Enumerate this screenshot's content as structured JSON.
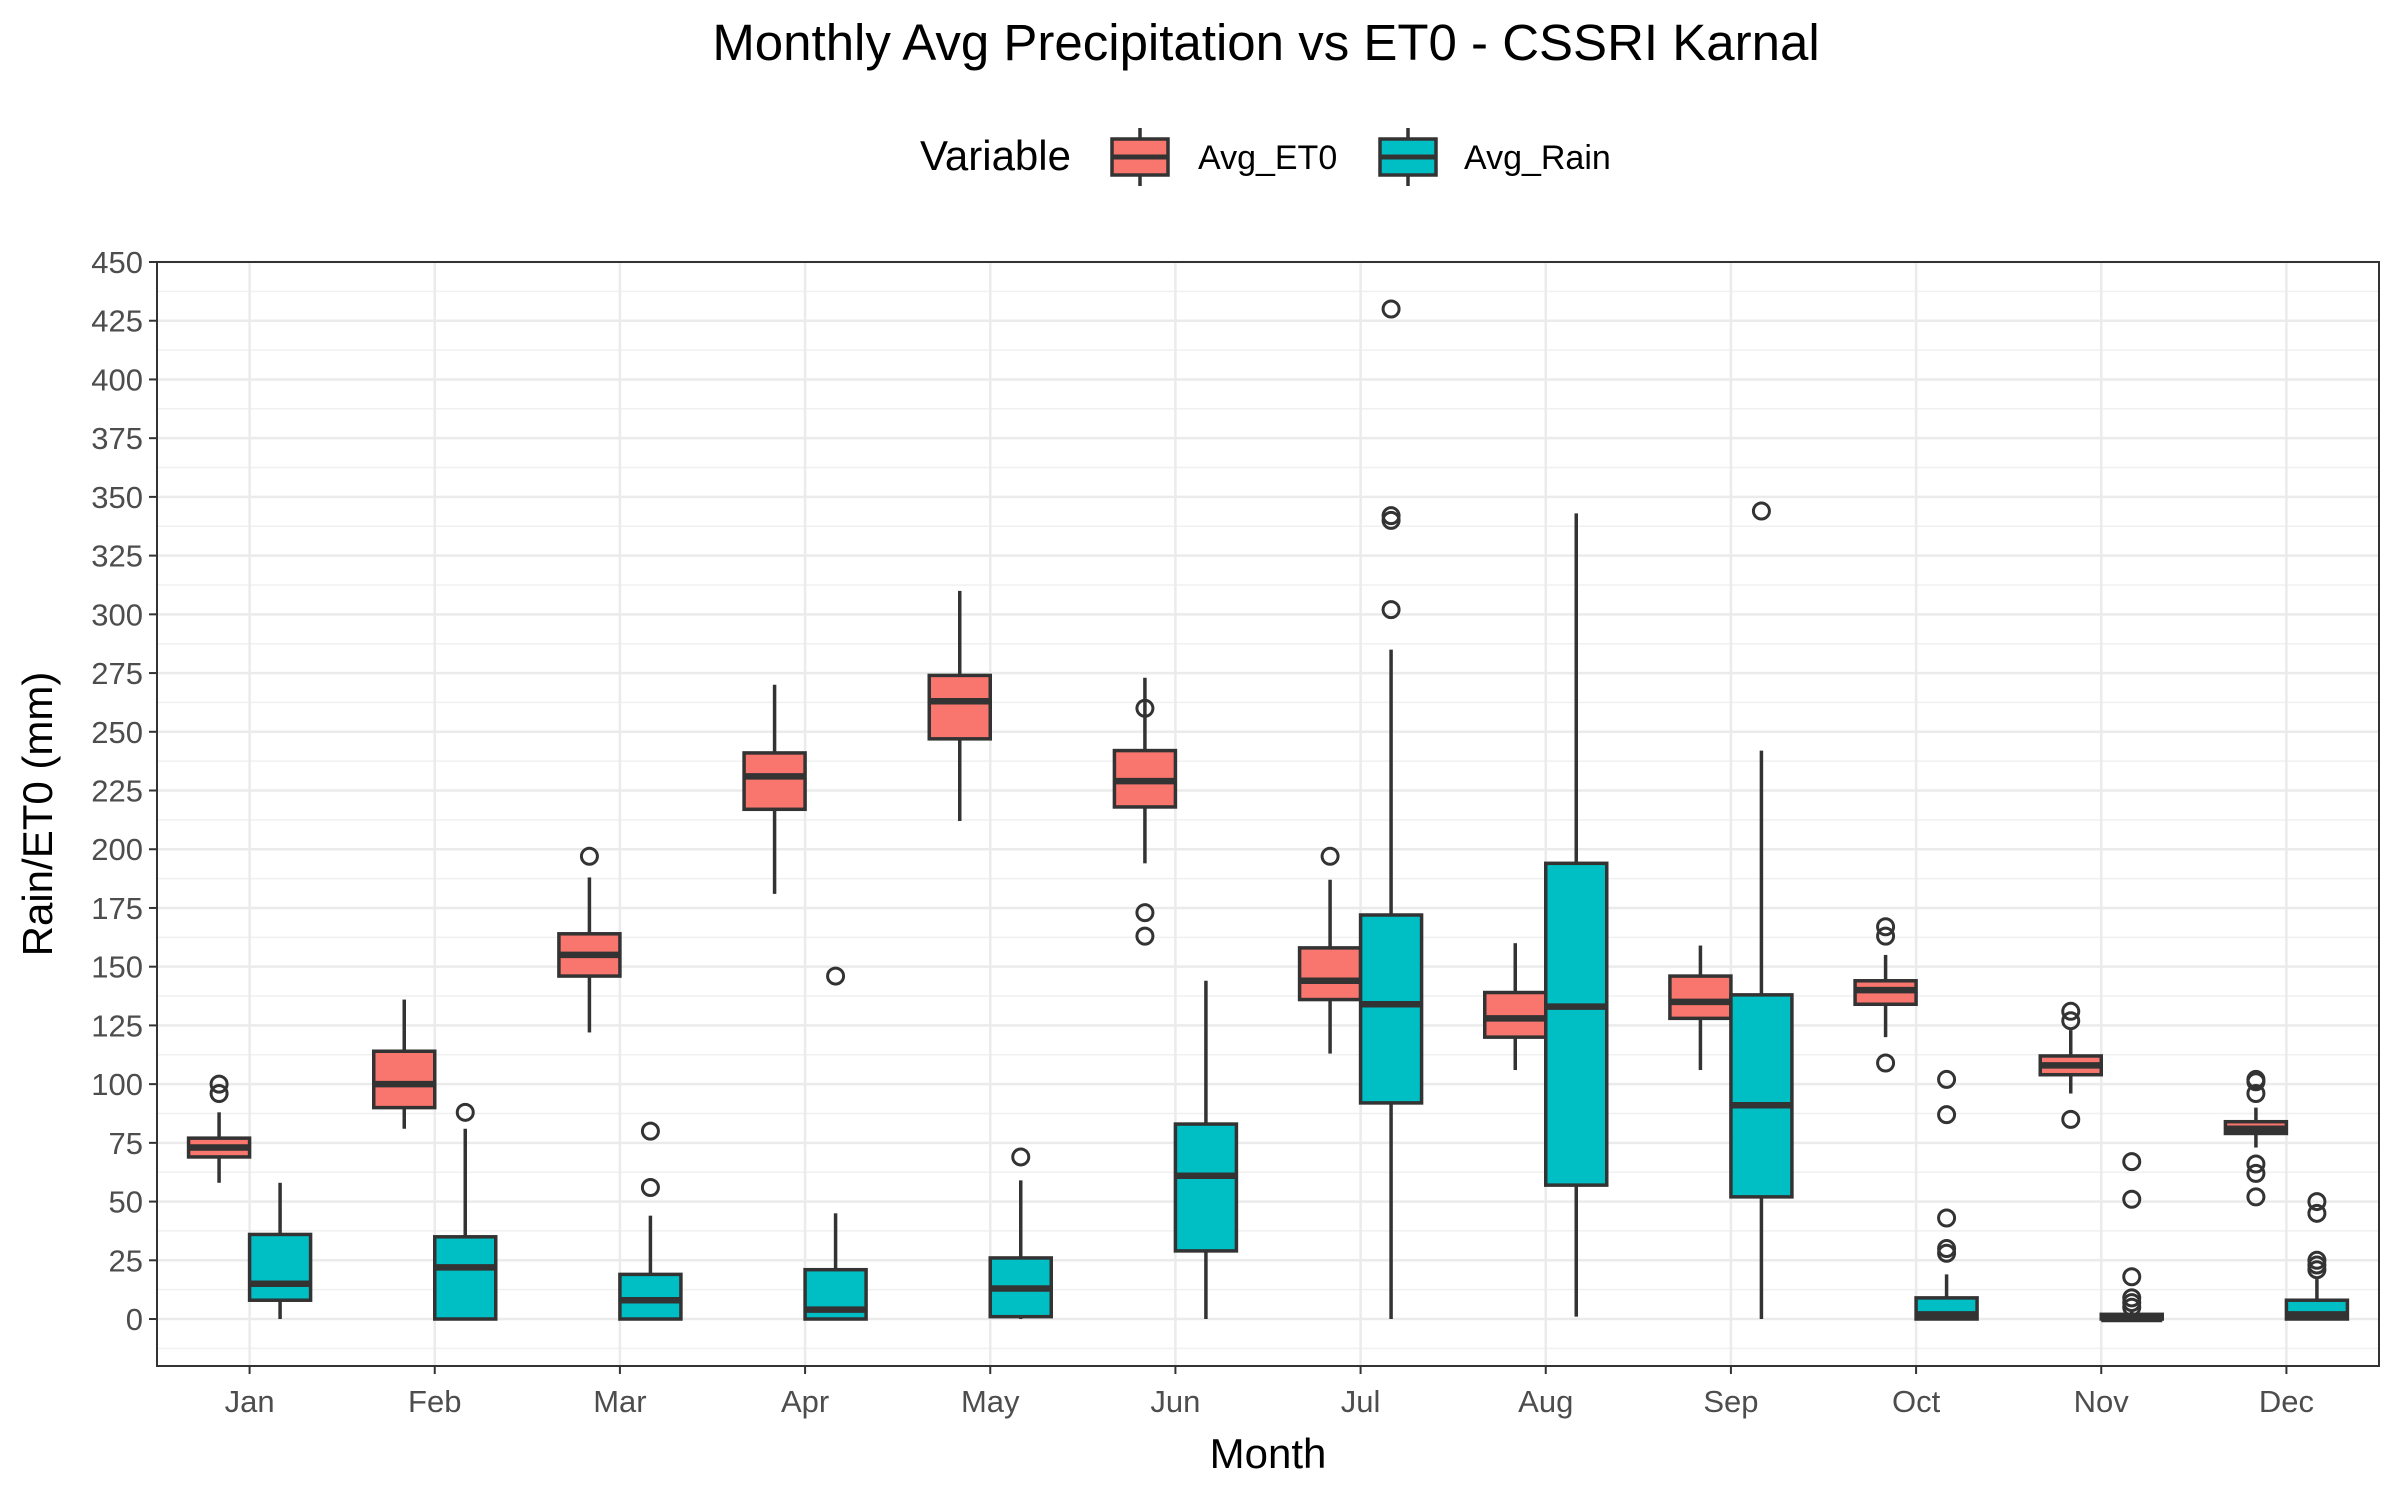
{
  "chart_data": {
    "type": "boxplot",
    "title": "Monthly Avg Precipitation vs ET0 - CSSRI Karnal",
    "xlabel": "Month",
    "ylabel": "Rain/ET0 (mm)",
    "ylim": [
      -20,
      450
    ],
    "y_ticks": [
      0,
      25,
      50,
      75,
      100,
      125,
      150,
      175,
      200,
      225,
      250,
      275,
      300,
      325,
      350,
      375,
      400,
      425,
      450
    ],
    "grid": true,
    "legend": {
      "title": "Variable",
      "position": "top"
    },
    "categories": [
      "Jan",
      "Feb",
      "Mar",
      "Apr",
      "May",
      "Jun",
      "Jul",
      "Aug",
      "Sep",
      "Oct",
      "Nov",
      "Dec"
    ],
    "series": [
      {
        "name": "Avg_ET0",
        "color": "#f8766d",
        "boxes": [
          {
            "min": 58,
            "q1": 69,
            "median": 73,
            "q3": 77,
            "max": 88,
            "outliers": [
              96,
              100
            ]
          },
          {
            "min": 81,
            "q1": 90,
            "median": 100,
            "q3": 114,
            "max": 136,
            "outliers": []
          },
          {
            "min": 122,
            "q1": 146,
            "median": 155,
            "q3": 164,
            "max": 188,
            "outliers": [
              197
            ]
          },
          {
            "min": 181,
            "q1": 217,
            "median": 231,
            "q3": 241,
            "max": 270,
            "outliers": []
          },
          {
            "min": 212,
            "q1": 247,
            "median": 263,
            "q3": 274,
            "max": 310,
            "outliers": []
          },
          {
            "min": 194,
            "q1": 218,
            "median": 229,
            "q3": 242,
            "max": 273,
            "outliers": [
              163,
              173,
              260
            ]
          },
          {
            "min": 113,
            "q1": 136,
            "median": 144,
            "q3": 158,
            "max": 187,
            "outliers": [
              197
            ]
          },
          {
            "min": 106,
            "q1": 120,
            "median": 128,
            "q3": 139,
            "max": 160,
            "outliers": []
          },
          {
            "min": 106,
            "q1": 128,
            "median": 135,
            "q3": 146,
            "max": 159,
            "outliers": []
          },
          {
            "min": 120,
            "q1": 134,
            "median": 140,
            "q3": 144,
            "max": 155,
            "outliers": [
              109,
              163,
              167
            ]
          },
          {
            "min": 96,
            "q1": 104,
            "median": 108,
            "q3": 112,
            "max": 123,
            "outliers": [
              85,
              127,
              131
            ]
          },
          {
            "min": 73,
            "q1": 79,
            "median": 81,
            "q3": 84,
            "max": 90,
            "outliers": [
              52,
              62,
              66,
              96,
              101,
              102
            ]
          }
        ]
      },
      {
        "name": "Avg_Rain",
        "color": "#00bfc4",
        "boxes": [
          {
            "min": 0,
            "q1": 8,
            "median": 15,
            "q3": 36,
            "max": 58,
            "outliers": []
          },
          {
            "min": 0,
            "q1": 0,
            "median": 22,
            "q3": 35,
            "max": 81,
            "outliers": [
              88
            ]
          },
          {
            "min": 0,
            "q1": 0,
            "median": 8,
            "q3": 19,
            "max": 44,
            "outliers": [
              56,
              80
            ]
          },
          {
            "min": 0,
            "q1": 0,
            "median": 4,
            "q3": 21,
            "max": 45,
            "outliers": [
              146
            ]
          },
          {
            "min": 0,
            "q1": 1,
            "median": 13,
            "q3": 26,
            "max": 59,
            "outliers": [
              69
            ]
          },
          {
            "min": 0,
            "q1": 29,
            "median": 61,
            "q3": 83,
            "max": 144,
            "outliers": []
          },
          {
            "min": 0,
            "q1": 92,
            "median": 134,
            "q3": 172,
            "max": 285,
            "outliers": [
              302,
              340,
              342,
              430
            ]
          },
          {
            "min": 1,
            "q1": 57,
            "median": 133,
            "q3": 194,
            "max": 343,
            "outliers": []
          },
          {
            "min": 0,
            "q1": 52,
            "median": 91,
            "q3": 138,
            "max": 242,
            "outliers": [
              344
            ]
          },
          {
            "min": 0,
            "q1": 0,
            "median": 2,
            "q3": 9,
            "max": 19,
            "outliers": [
              28,
              30,
              43,
              87,
              102
            ]
          },
          {
            "min": 0,
            "q1": 0,
            "median": 0,
            "q3": 2,
            "max": 3,
            "outliers": [
              5,
              7,
              9,
              18,
              51,
              67
            ]
          },
          {
            "min": 0,
            "q1": 0,
            "median": 2,
            "q3": 8,
            "max": 17,
            "outliers": [
              21,
              23,
              25,
              45,
              50
            ]
          }
        ]
      }
    ]
  }
}
